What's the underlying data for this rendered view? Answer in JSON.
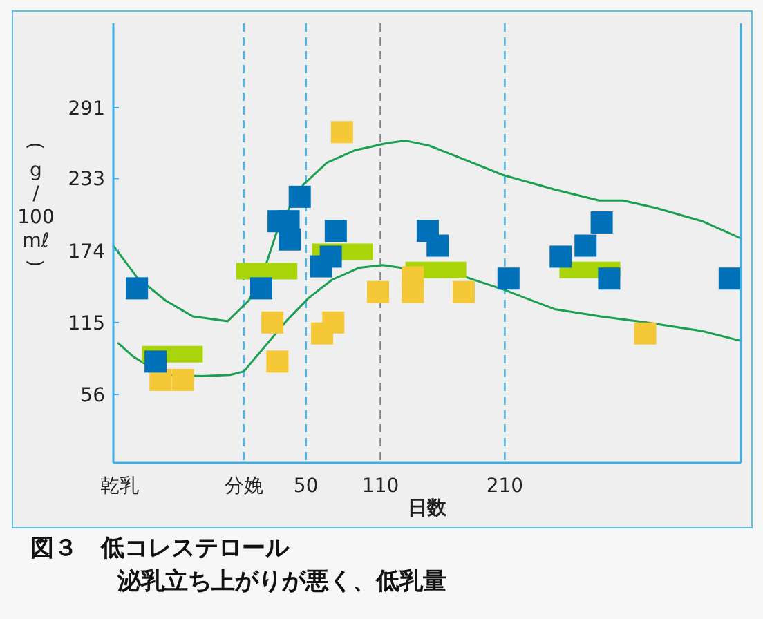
{
  "chart_data": {
    "type": "scatter",
    "title": "図３　低コレステロール",
    "subtitle": "泌乳立ち上がりが悪く、低乳量",
    "xlabel": "日数",
    "ylabel": "(g/100mℓ)",
    "xlim": [
      -105,
      400
    ],
    "xticks": [
      {
        "value": -100,
        "label": "乾乳"
      },
      {
        "value": 0,
        "label": "分娩"
      },
      50,
      110,
      210
    ],
    "ylim": [
      0,
      360
    ],
    "yticks": [
      56,
      115,
      174,
      233,
      291
    ],
    "line_style": "solid",
    "grid": false,
    "ref_lines": [
      {
        "axis": "x",
        "value": 0,
        "color": "#4cb4e6",
        "line_style": "dashed"
      },
      {
        "axis": "x",
        "value": 50,
        "color": "#4cb4e6",
        "line_style": "dashed"
      },
      {
        "axis": "x",
        "value": 110,
        "color": "#808080",
        "line_style": "dashed"
      },
      {
        "axis": "x",
        "value": 210,
        "color": "#4cb4e6",
        "line_style": "dashed"
      }
    ],
    "series": [
      {
        "type": "line",
        "color": "#1a9e50",
        "x": [
          -105,
          -86,
          -63,
          -41,
          -13,
          4,
          17,
          28,
          48,
          67,
          89,
          115,
          130,
          149,
          179,
          208,
          250,
          286,
          305,
          331,
          369,
          400
        ],
        "values": [
          178,
          152,
          133,
          120,
          116,
          133,
          160,
          194,
          228,
          246,
          256,
          262,
          264,
          260,
          248,
          236,
          224,
          215,
          215,
          209,
          198,
          184
        ]
      },
      {
        "type": "line",
        "color": "#1a9e50",
        "x": [
          -101,
          -89,
          -78,
          -60,
          -34,
          -11,
          0,
          15,
          34,
          52,
          71,
          93,
          112,
          179,
          209,
          250,
          287,
          324,
          369,
          400
        ],
        "values": [
          98,
          87,
          80,
          72,
          71,
          72,
          75,
          93,
          116,
          135,
          150,
          160,
          162,
          152,
          142,
          126,
          120,
          115,
          108,
          100
        ]
      },
      {
        "type": "line",
        "color": "#a8d408",
        "x": [
          -82,
          -33
        ],
        "values": [
          89,
          89
        ]
      },
      {
        "type": "line",
        "color": "#a8d408",
        "x": [
          -6,
          43
        ],
        "values": [
          157,
          157
        ]
      },
      {
        "type": "line",
        "color": "#a8d408",
        "x": [
          55,
          104
        ],
        "values": [
          173,
          173
        ]
      },
      {
        "type": "line",
        "color": "#a8d408",
        "x": [
          130,
          179
        ],
        "values": [
          158,
          158
        ]
      },
      {
        "type": "line",
        "color": "#a8d408",
        "x": [
          254,
          303
        ],
        "values": [
          158,
          158
        ]
      },
      {
        "marker": "square",
        "color": "#f5c838",
        "x": [
          -67,
          -49,
          23,
          27,
          63,
          72,
          79,
          108,
          136,
          136,
          177,
          323
        ],
        "values": [
          68,
          68,
          115,
          83,
          106,
          115,
          271,
          140,
          152,
          140,
          140,
          106
        ]
      },
      {
        "marker": "square",
        "color": "#0070b8",
        "x": [
          -86,
          -71,
          14,
          28,
          36,
          37,
          45,
          62,
          70,
          74,
          148,
          156,
          213,
          255,
          275,
          288,
          294,
          391
        ],
        "values": [
          143,
          83,
          143,
          198,
          198,
          183,
          218,
          161,
          169,
          190,
          190,
          178,
          151,
          169,
          178,
          197,
          151,
          151
        ]
      }
    ]
  }
}
